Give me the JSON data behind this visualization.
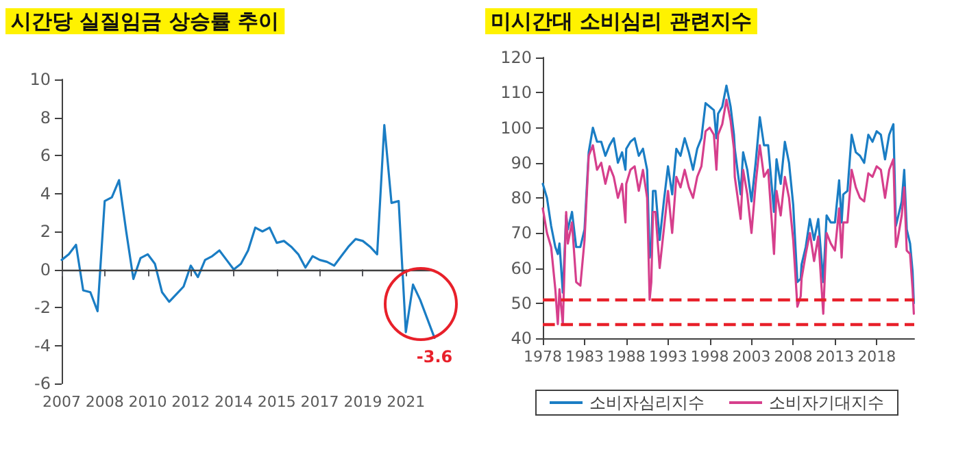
{
  "chart_data": [
    {
      "type": "line",
      "title": "시간당 실질임금 상승률 추이",
      "categories": [
        "2007",
        null,
        null,
        null,
        null,
        null,
        "2008",
        null,
        null,
        null,
        null,
        null,
        "2010",
        null,
        null,
        null,
        null,
        null,
        "2012",
        null,
        null,
        null,
        null,
        null,
        "2014",
        null,
        null,
        null,
        null,
        null,
        "2015",
        null,
        null,
        null,
        null,
        null,
        "2017",
        null,
        null,
        null,
        null,
        null,
        "2019",
        null,
        null,
        null,
        null,
        null,
        "2021",
        null,
        null,
        null,
        null
      ],
      "series": [
        {
          "color": "#1a7dc4",
          "values": [
            0.5,
            0.8,
            1.3,
            -1.1,
            -1.2,
            -2.2,
            3.6,
            3.8,
            4.7,
            2.0,
            -0.5,
            0.6,
            0.8,
            0.3,
            -1.2,
            -1.7,
            -1.3,
            -0.9,
            0.2,
            -0.4,
            0.5,
            0.7,
            1.0,
            0.5,
            0.0,
            0.3,
            1.0,
            2.2,
            2.0,
            2.2,
            1.4,
            1.5,
            1.2,
            0.8,
            0.1,
            0.7,
            0.5,
            0.4,
            0.2,
            0.7,
            1.2,
            1.6,
            1.5,
            1.2,
            0.8,
            7.6,
            3.5,
            3.6,
            -3.3,
            -0.8,
            -1.6,
            -2.6,
            -3.6
          ],
          "value_labels": [
            null,
            null,
            null,
            null,
            null,
            null,
            null,
            null,
            null,
            null,
            null,
            null,
            null,
            null,
            null,
            null,
            null,
            null,
            null,
            null,
            null,
            null,
            null,
            null,
            null,
            null,
            null,
            null,
            null,
            null,
            null,
            null,
            null,
            null,
            null,
            null,
            null,
            null,
            null,
            null,
            null,
            null,
            null,
            null,
            null,
            null,
            null,
            null,
            null,
            null,
            null,
            null,
            "-3.6"
          ]
        }
      ],
      "ylim": [
        -6,
        10
      ],
      "yticks": [
        -6,
        -4,
        -2,
        0,
        2,
        4,
        6,
        8,
        10
      ],
      "grid": false,
      "legend": false,
      "marker": "none",
      "line_style": "solid",
      "ref_lines": [
        {
          "axis": "y",
          "value": 0,
          "color": "#404040"
        }
      ]
    },
    {
      "type": "line",
      "title": "미시간대 소비심리 관련지수",
      "x": [
        1978,
        1978.5,
        1979,
        1979.5,
        1979.8,
        1980,
        1980.4,
        1980.8,
        1981,
        1981.5,
        1982,
        1982.5,
        1983,
        1983.5,
        1984,
        1984.5,
        1985,
        1985.5,
        1986,
        1986.5,
        1987,
        1987.5,
        1987.9,
        1988,
        1988.5,
        1989,
        1989.5,
        1990,
        1990.5,
        1990.8,
        1991,
        1991.2,
        1991.5,
        1992,
        1992.5,
        1993,
        1993.5,
        1994,
        1994.5,
        1995,
        1995.5,
        1996,
        1996.5,
        1997,
        1997.5,
        1998,
        1998.5,
        1998.8,
        1999,
        1999.5,
        2000,
        2000.5,
        2000.9,
        2001,
        2001.7,
        2002,
        2002.5,
        2003,
        2003.5,
        2004,
        2004.5,
        2005,
        2005.7,
        2006,
        2006.5,
        2007,
        2007.5,
        2008,
        2008.5,
        2008.9,
        2009,
        2009.5,
        2010,
        2010.5,
        2011,
        2011.6,
        2012,
        2012.5,
        2013,
        2013.5,
        2013.8,
        2014,
        2014.5,
        2015,
        2015.5,
        2016,
        2016.5,
        2017,
        2017.5,
        2018,
        2018.5,
        2019,
        2019.5,
        2020,
        2020.3,
        2020.5,
        2021,
        2021.3,
        2021.6,
        2022,
        2022.3,
        2022.45
      ],
      "series": [
        {
          "name": "소비자심리지수",
          "color": "#1a7dc4",
          "values": [
            84,
            80,
            72,
            66,
            64,
            67,
            53,
            75,
            71,
            76,
            66,
            66,
            71,
            93,
            100,
            96,
            96,
            92,
            95,
            97,
            90,
            93,
            88,
            94,
            96,
            97,
            92,
            94,
            88,
            63,
            66,
            82,
            82,
            68,
            79,
            89,
            81,
            94,
            92,
            97,
            93,
            88,
            94,
            97,
            107,
            106,
            105,
            97,
            104,
            106,
            112,
            106,
            98,
            94,
            81,
            93,
            88,
            79,
            90,
            103,
            95,
            95,
            76,
            91,
            84,
            96,
            90,
            78,
            56,
            57,
            61,
            66,
            74,
            68,
            74,
            56,
            75,
            73,
            73,
            85,
            73,
            81,
            82,
            98,
            93,
            92,
            90,
            98,
            96,
            99,
            98,
            91,
            98,
            101,
            72,
            74,
            79,
            88,
            71,
            67,
            59,
            50
          ]
        },
        {
          "name": "소비자기대지수",
          "color": "#d63f8c",
          "values": [
            77,
            70,
            66,
            54,
            44,
            54,
            44,
            76,
            67,
            73,
            56,
            55,
            68,
            92,
            95,
            88,
            90,
            84,
            89,
            86,
            80,
            84,
            73,
            84,
            88,
            89,
            82,
            88,
            80,
            51,
            56,
            76,
            76,
            60,
            71,
            82,
            70,
            86,
            83,
            88,
            83,
            80,
            86,
            89,
            99,
            100,
            98,
            88,
            98,
            101,
            108,
            102,
            94,
            86,
            74,
            88,
            81,
            70,
            84,
            95,
            86,
            88,
            64,
            82,
            75,
            86,
            80,
            68,
            49,
            52,
            57,
            64,
            70,
            62,
            69,
            47,
            70,
            67,
            65,
            77,
            63,
            73,
            73,
            88,
            83,
            80,
            79,
            87,
            86,
            89,
            88,
            80,
            88,
            91,
            66,
            68,
            75,
            83,
            65,
            64,
            54,
            47
          ]
        }
      ],
      "xlim": [
        1978,
        2022.5
      ],
      "xticks": [
        1978,
        1983,
        1988,
        1993,
        1998,
        2003,
        2008,
        2013,
        2018
      ],
      "ylim": [
        40,
        120
      ],
      "yticks": [
        40,
        50,
        60,
        70,
        80,
        90,
        100,
        110,
        120
      ],
      "grid": false,
      "legend": "bottom",
      "marker": "none",
      "line_style": "solid",
      "ref_lines": [
        {
          "axis": "y",
          "value": 51,
          "color": "#e8202a",
          "line_style": "dashed"
        },
        {
          "axis": "y",
          "value": 44,
          "color": "#e8202a",
          "line_style": "dashed"
        }
      ]
    }
  ]
}
